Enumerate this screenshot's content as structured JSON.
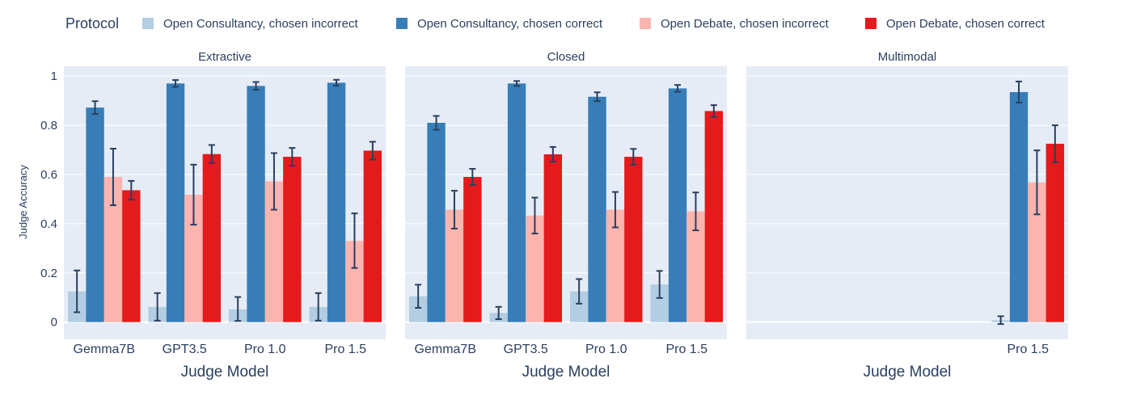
{
  "legend": {
    "title": "Protocol",
    "items": [
      {
        "label": "Open Consultancy, chosen incorrect",
        "color": "#b3cde3"
      },
      {
        "label": "Open Consultancy, chosen correct",
        "color": "#377eb8"
      },
      {
        "label": "Open Debate, chosen incorrect",
        "color": "#fbb4ae"
      },
      {
        "label": "Open Debate, chosen correct",
        "color": "#e41a1c"
      }
    ]
  },
  "ylabel": "Judge Accuracy",
  "xlabel": "Judge Model",
  "colors": {
    "plot_bg": "#e5ecf6",
    "grid": "#ffffff",
    "error_bar": "#2a3f5f",
    "text": "#2a3f5f"
  },
  "chart_data": [
    {
      "type": "bar",
      "title": "Extractive",
      "categories": [
        "Gemma7B",
        "GPT3.5",
        "Pro 1.0",
        "Pro 1.5"
      ],
      "ylim": [
        -0.07,
        1.04
      ],
      "yticks": [
        0,
        0.2,
        0.4,
        0.6,
        0.8,
        1
      ],
      "ytick_labels": [
        "0",
        "0.2",
        "0.4",
        "0.6",
        "0.8",
        "1"
      ],
      "series": [
        {
          "name": "Open Consultancy, chosen incorrect",
          "values": [
            0.125,
            0.062,
            0.052,
            0.062
          ],
          "err_low": [
            0.085,
            0.056,
            0.047,
            0.056
          ],
          "err_high": [
            0.085,
            0.056,
            0.05,
            0.056
          ]
        },
        {
          "name": "Open Consultancy, chosen correct",
          "values": [
            0.872,
            0.97,
            0.96,
            0.973
          ],
          "err_low": [
            0.026,
            0.014,
            0.016,
            0.012
          ],
          "err_high": [
            0.026,
            0.014,
            0.016,
            0.012
          ]
        },
        {
          "name": "Open Debate, chosen incorrect",
          "values": [
            0.59,
            0.518,
            0.572,
            0.33
          ],
          "err_low": [
            0.115,
            0.122,
            0.115,
            0.11
          ],
          "err_high": [
            0.115,
            0.122,
            0.115,
            0.112
          ]
        },
        {
          "name": "Open Debate, chosen correct",
          "values": [
            0.536,
            0.683,
            0.672,
            0.697
          ],
          "err_low": [
            0.038,
            0.037,
            0.036,
            0.036
          ],
          "err_high": [
            0.038,
            0.037,
            0.036,
            0.036
          ]
        }
      ]
    },
    {
      "type": "bar",
      "title": "Closed",
      "categories": [
        "Gemma7B",
        "GPT3.5",
        "Pro 1.0",
        "Pro 1.5"
      ],
      "ylim": [
        -0.07,
        1.04
      ],
      "series": [
        {
          "name": "Open Consultancy, chosen incorrect",
          "values": [
            0.105,
            0.037,
            0.125,
            0.153
          ],
          "err_low": [
            0.047,
            0.025,
            0.05,
            0.055
          ],
          "err_high": [
            0.047,
            0.025,
            0.05,
            0.055
          ]
        },
        {
          "name": "Open Consultancy, chosen correct",
          "values": [
            0.81,
            0.97,
            0.916,
            0.95
          ],
          "err_low": [
            0.028,
            0.01,
            0.018,
            0.014
          ],
          "err_high": [
            0.028,
            0.01,
            0.018,
            0.014
          ]
        },
        {
          "name": "Open Debate, chosen incorrect",
          "values": [
            0.457,
            0.433,
            0.457,
            0.45
          ],
          "err_low": [
            0.077,
            0.073,
            0.072,
            0.077
          ],
          "err_high": [
            0.077,
            0.073,
            0.072,
            0.077
          ]
        },
        {
          "name": "Open Debate, chosen correct",
          "values": [
            0.59,
            0.682,
            0.672,
            0.858
          ],
          "err_low": [
            0.033,
            0.03,
            0.032,
            0.024
          ],
          "err_high": [
            0.033,
            0.03,
            0.032,
            0.024
          ]
        }
      ]
    },
    {
      "type": "bar",
      "title": "Multimodal",
      "categories": [
        "",
        "",
        "",
        "Pro 1.5"
      ],
      "ylim": [
        -0.07,
        1.04
      ],
      "series": [
        {
          "name": "Open Consultancy, chosen incorrect",
          "values": [
            null,
            null,
            null,
            0.008
          ],
          "err_low": [
            null,
            null,
            null,
            0.016
          ],
          "err_high": [
            null,
            null,
            null,
            0.016
          ]
        },
        {
          "name": "Open Consultancy, chosen correct",
          "values": [
            null,
            null,
            null,
            0.935
          ],
          "err_low": [
            null,
            null,
            null,
            0.043
          ],
          "err_high": [
            null,
            null,
            null,
            0.043
          ]
        },
        {
          "name": "Open Debate, chosen incorrect",
          "values": [
            null,
            null,
            null,
            0.568
          ],
          "err_low": [
            null,
            null,
            null,
            0.13
          ],
          "err_high": [
            null,
            null,
            null,
            0.13
          ]
        },
        {
          "name": "Open Debate, chosen correct",
          "values": [
            null,
            null,
            null,
            0.725
          ],
          "err_low": [
            null,
            null,
            null,
            0.075
          ],
          "err_high": [
            null,
            null,
            null,
            0.075
          ]
        }
      ]
    }
  ]
}
